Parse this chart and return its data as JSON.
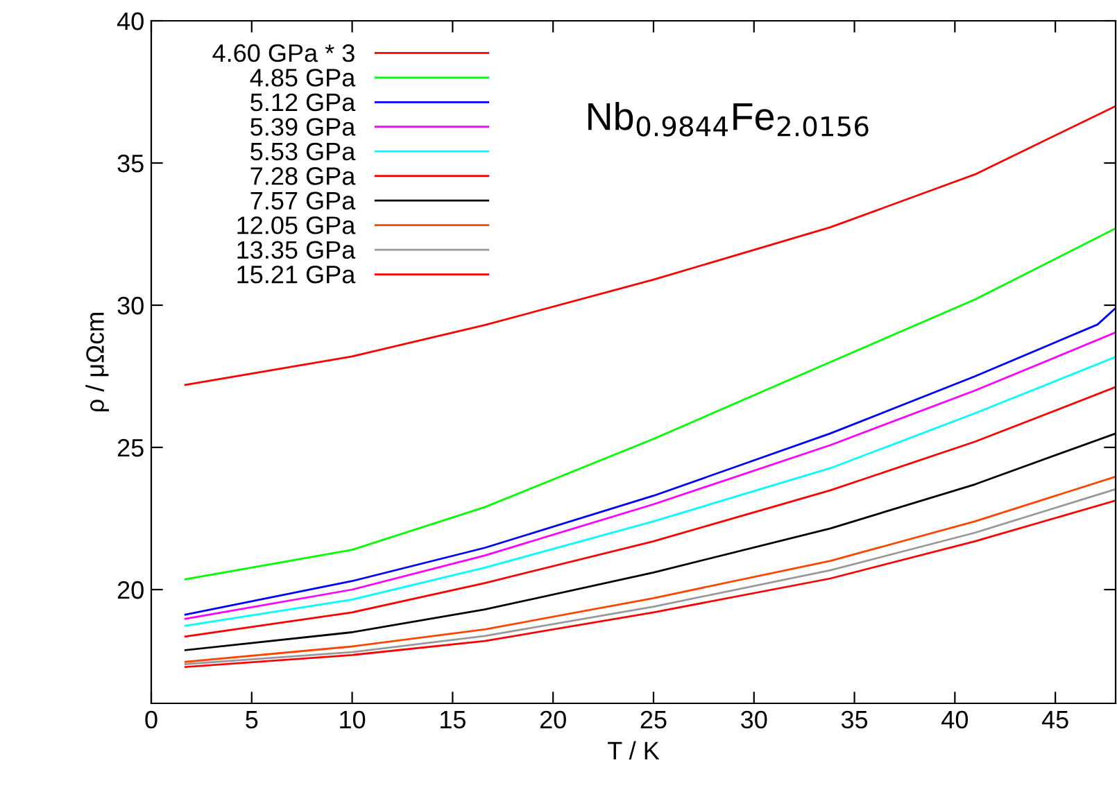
{
  "chart_data": {
    "type": "line",
    "xlabel": "T / K",
    "ylabel": "ρ / μΩcm",
    "annotations": [
      "Nb$_{0.9844}$Fe$_{2.0156}$"
    ],
    "x": [
      1.7,
      10,
      16.6,
      25,
      33.8,
      41,
      48
    ],
    "xlim": [
      0,
      48
    ],
    "xticks": [
      0,
      5,
      10,
      15,
      20,
      25,
      30,
      35,
      40,
      45
    ],
    "ylim": [
      16,
      40
    ],
    "yticks": [
      20,
      25,
      30,
      35,
      40
    ],
    "grid": false,
    "legend": "top left",
    "marker": "none",
    "line_style": "solid",
    "series": [
      {
        "name": "4.60 GPa * 3",
        "color": "#ff0000",
        "values": [
          27.2,
          28.2,
          29.3,
          30.9,
          32.74,
          34.6,
          37.0
        ]
      },
      {
        "name": "4.85 GPa",
        "color": "#00ff00",
        "values": [
          20.36,
          21.4,
          22.9,
          25.3,
          28.0,
          30.2,
          32.7
        ]
      },
      {
        "name": "5.12 GPa",
        "color": "#0000ff",
        "x": [
          1.7,
          10,
          16.6,
          25,
          33.8,
          41,
          47.1,
          48
        ],
        "values": [
          19.12,
          20.3,
          21.47,
          23.3,
          25.49,
          27.5,
          29.32,
          29.9
        ]
      },
      {
        "name": "5.39 GPa",
        "color": "#ff00ff",
        "values": [
          18.97,
          20.0,
          21.2,
          23.0,
          25.08,
          27.0,
          29.04
        ]
      },
      {
        "name": "5.53 GPa",
        "color": "#00ffff",
        "values": [
          18.73,
          19.65,
          20.77,
          22.4,
          24.27,
          26.2,
          28.18
        ]
      },
      {
        "name": "7.28 GPa",
        "color": "#ff0000",
        "values": [
          18.35,
          19.2,
          20.23,
          21.7,
          23.49,
          25.2,
          27.12
        ]
      },
      {
        "name": "7.57 GPa",
        "color": "#000000",
        "values": [
          17.87,
          18.5,
          19.3,
          20.6,
          22.15,
          23.7,
          25.49
        ]
      },
      {
        "name": "12.05 GPa",
        "color": "#ff4500",
        "values": [
          17.46,
          18.0,
          18.6,
          19.7,
          21.01,
          22.4,
          23.97
        ]
      },
      {
        "name": "13.35 GPa",
        "color": "#999999",
        "values": [
          17.38,
          17.8,
          18.37,
          19.4,
          20.68,
          22.0,
          23.53
        ]
      },
      {
        "name": "15.21 GPa",
        "color": "#ff0000",
        "values": [
          17.28,
          17.7,
          18.19,
          19.2,
          20.39,
          21.7,
          23.13
        ]
      }
    ]
  }
}
